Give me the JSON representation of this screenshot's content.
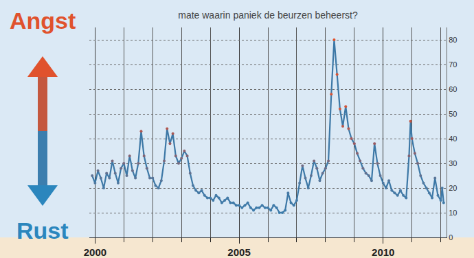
{
  "chart_data": {
    "type": "line",
    "title": "mate waarin paniek de beurzen beheerst?",
    "annotations": [
      "Angst",
      "Rust"
    ],
    "x": [
      1999.9,
      2000.0,
      2000.1,
      2000.2,
      2000.3,
      2000.4,
      2000.5,
      2000.6,
      2000.7,
      2000.8,
      2000.9,
      2001.0,
      2001.1,
      2001.2,
      2001.3,
      2001.4,
      2001.5,
      2001.6,
      2001.7,
      2001.8,
      2001.9,
      2002.0,
      2002.1,
      2002.2,
      2002.3,
      2002.4,
      2002.5,
      2002.6,
      2002.7,
      2002.8,
      2002.9,
      2003.0,
      2003.1,
      2003.2,
      2003.3,
      2003.4,
      2003.5,
      2003.6,
      2003.7,
      2003.8,
      2003.9,
      2004.0,
      2004.1,
      2004.2,
      2004.3,
      2004.4,
      2004.5,
      2004.6,
      2004.7,
      2004.8,
      2004.9,
      2005.0,
      2005.1,
      2005.2,
      2005.3,
      2005.4,
      2005.5,
      2005.6,
      2005.7,
      2005.8,
      2005.9,
      2006.0,
      2006.1,
      2006.2,
      2006.3,
      2006.4,
      2006.5,
      2006.6,
      2006.7,
      2006.8,
      2006.9,
      2007.0,
      2007.1,
      2007.2,
      2007.3,
      2007.4,
      2007.5,
      2007.6,
      2007.7,
      2007.8,
      2007.9,
      2008.0,
      2008.1,
      2008.2,
      2008.3,
      2008.4,
      2008.5,
      2008.6,
      2008.7,
      2008.8,
      2008.9,
      2009.0,
      2009.1,
      2009.2,
      2009.3,
      2009.4,
      2009.5,
      2009.6,
      2009.7,
      2009.8,
      2009.9,
      2010.0,
      2010.1,
      2010.2,
      2010.3,
      2010.4,
      2010.5,
      2010.6,
      2010.7,
      2010.8,
      2010.9,
      2010.95,
      2011.0,
      2011.1,
      2011.2,
      2011.3,
      2011.4,
      2011.5,
      2011.6,
      2011.7,
      2011.8,
      2011.9,
      2012.0,
      2012.05,
      2012.1
    ],
    "values": [
      25,
      22,
      27,
      24,
      20,
      26,
      24,
      31,
      26,
      22,
      28,
      30,
      25,
      33,
      27,
      24,
      30,
      43,
      33,
      28,
      24,
      24,
      21,
      20,
      23,
      31,
      44,
      38,
      42,
      33,
      30,
      32,
      35,
      33,
      26,
      21,
      19,
      18,
      19,
      17,
      16,
      16,
      15,
      17,
      16,
      14,
      15,
      16,
      14,
      14,
      13,
      13,
      12,
      13,
      14,
      12,
      11,
      12,
      12,
      13,
      12,
      12,
      11,
      13,
      12,
      10,
      10,
      11,
      18,
      14,
      13,
      15,
      22,
      29,
      24,
      20,
      25,
      31,
      28,
      23,
      26,
      28,
      31,
      58,
      80,
      66,
      52,
      45,
      53,
      44,
      40,
      38,
      34,
      31,
      28,
      26,
      25,
      23,
      38,
      30,
      25,
      22,
      20,
      23,
      19,
      18,
      17,
      19,
      17,
      16,
      33,
      47,
      40,
      34,
      30,
      25,
      22,
      20,
      18,
      16,
      24,
      17,
      15,
      20,
      14
    ],
    "color": "#3d78a6",
    "xlim": [
      1999.8,
      2012.2
    ],
    "xticks": [
      2000,
      2005,
      2010
    ],
    "ylim": [
      0,
      85
    ],
    "yticks": [
      0,
      10,
      20,
      30,
      40,
      50,
      60,
      70,
      80
    ],
    "grid": true
  }
}
